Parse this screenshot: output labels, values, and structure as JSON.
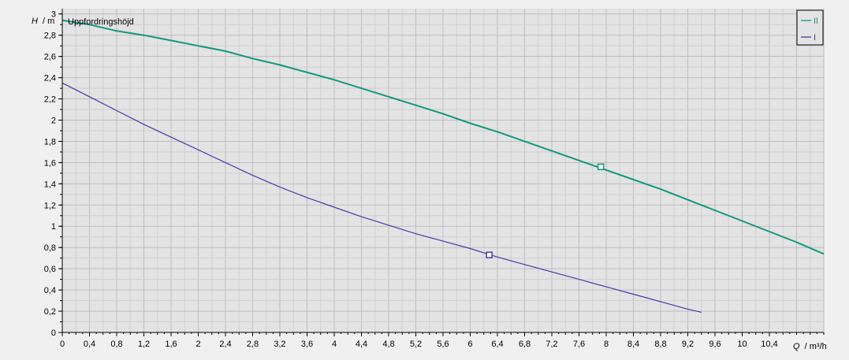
{
  "chart_data": {
    "type": "line",
    "title": "Uppfordringshöjd",
    "ylabel_var": "H",
    "ylabel_unit": "/ m",
    "xlabel_var": "Q",
    "xlabel_unit": "/ m³/h",
    "xlim": [
      0,
      11.2
    ],
    "ylim": [
      0,
      3.05
    ],
    "grid": true,
    "legend_position": "top-right",
    "x_major_ticks": [
      "0",
      "0,4",
      "0,8",
      "1,2",
      "1,6",
      "2",
      "2,4",
      "2,8",
      "3,2",
      "3,6",
      "4",
      "4,4",
      "4,8",
      "5,2",
      "5,6",
      "6",
      "6,4",
      "6,8",
      "7,2",
      "7,6",
      "8",
      "8,4",
      "8,8",
      "9,2",
      "9,6",
      "10",
      "10,4"
    ],
    "y_major_ticks": [
      "0",
      "0,2",
      "0,4",
      "0,6",
      "0,8",
      "1",
      "1,2",
      "1,4",
      "1,6",
      "1,8",
      "2",
      "2,2",
      "2,4",
      "2,6",
      "2,8",
      "3"
    ],
    "series": [
      {
        "name": "II",
        "color": "#13987c",
        "x": [
          0,
          0.4,
          0.8,
          1.2,
          1.6,
          2.0,
          2.4,
          2.8,
          3.2,
          3.6,
          4.0,
          4.4,
          4.8,
          5.2,
          5.6,
          6.0,
          6.4,
          6.8,
          7.2,
          7.6,
          8.0,
          8.4,
          8.8,
          9.2,
          9.6,
          10.0,
          10.4,
          10.8,
          11.2
        ],
        "y": [
          2.94,
          2.9,
          2.84,
          2.8,
          2.75,
          2.7,
          2.65,
          2.58,
          2.52,
          2.45,
          2.38,
          2.3,
          2.22,
          2.14,
          2.06,
          1.97,
          1.89,
          1.8,
          1.71,
          1.62,
          1.53,
          1.44,
          1.35,
          1.25,
          1.15,
          1.05,
          0.95,
          0.85,
          0.74
        ],
        "marker": {
          "x": 7.92,
          "y": 1.56
        }
      },
      {
        "name": "I",
        "color": "#4a3aaa",
        "x": [
          0,
          0.4,
          0.8,
          1.2,
          1.6,
          2.0,
          2.4,
          2.8,
          3.2,
          3.6,
          4.0,
          4.4,
          4.8,
          5.2,
          5.6,
          6.0,
          6.4,
          6.8,
          7.2,
          7.6,
          8.0,
          8.4,
          8.8,
          9.2,
          9.4
        ],
        "y": [
          2.35,
          2.22,
          2.09,
          1.96,
          1.84,
          1.72,
          1.6,
          1.48,
          1.37,
          1.27,
          1.18,
          1.09,
          1.01,
          0.93,
          0.86,
          0.79,
          0.71,
          0.64,
          0.57,
          0.5,
          0.43,
          0.36,
          0.29,
          0.22,
          0.19
        ],
        "marker": {
          "x": 6.28,
          "y": 0.73
        }
      }
    ]
  }
}
